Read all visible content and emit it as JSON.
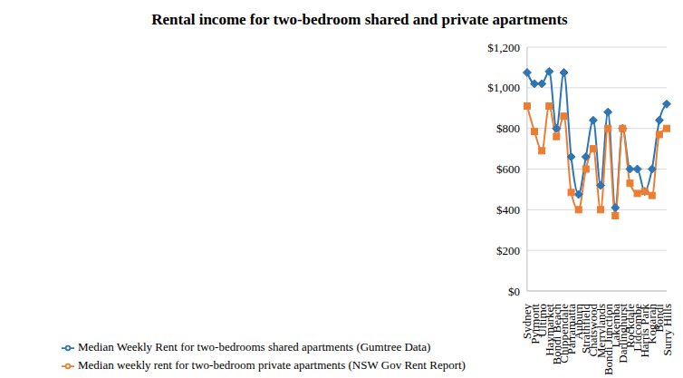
{
  "chart_data": {
    "type": "line",
    "title": "Rental income for two-bedroom shared and private apartments",
    "categories": [
      "Sydney",
      "Pyrmont",
      "Ultimo",
      "Haymarket",
      "Bondi Beach",
      "Chippendale",
      "Parramatta",
      "Auburn",
      "Strathfield",
      "Chatswood",
      "Merrylands",
      "Bondi Junction",
      "Lakemba",
      "Darlinghurst",
      "Rockdale",
      "Lidcombe",
      "Harris Park",
      "Kogarah",
      "Bondi",
      "Surry Hills"
    ],
    "series": [
      {
        "name": "Median Weekly Rent for two-bedrooms shared apartments (Gumtree Data)",
        "color": "#2e75b6",
        "marker": "diamond",
        "values": [
          1075,
          1020,
          1020,
          1080,
          800,
          1075,
          660,
          475,
          660,
          840,
          520,
          880,
          410,
          800,
          600,
          600,
          490,
          600,
          840,
          920
        ]
      },
      {
        "name": "Median weekly rent for two-bedroom private apartments (NSW Gov Rent Report)",
        "color": "#ed7d31",
        "marker": "square",
        "values": [
          910,
          785,
          690,
          910,
          760,
          860,
          485,
          400,
          600,
          700,
          400,
          800,
          370,
          800,
          530,
          480,
          490,
          470,
          770,
          800
        ]
      }
    ],
    "ylim": [
      0,
      1200
    ],
    "yticks": [
      {
        "value": 0,
        "label": "$0"
      },
      {
        "value": 200,
        "label": "$200"
      },
      {
        "value": 400,
        "label": "$400"
      },
      {
        "value": 600,
        "label": "$600"
      },
      {
        "value": 800,
        "label": "$800"
      },
      {
        "value": 1000,
        "label": "$1,000"
      },
      {
        "value": 1200,
        "label": "$1,200"
      }
    ],
    "grid": true,
    "legend": "bottom"
  }
}
